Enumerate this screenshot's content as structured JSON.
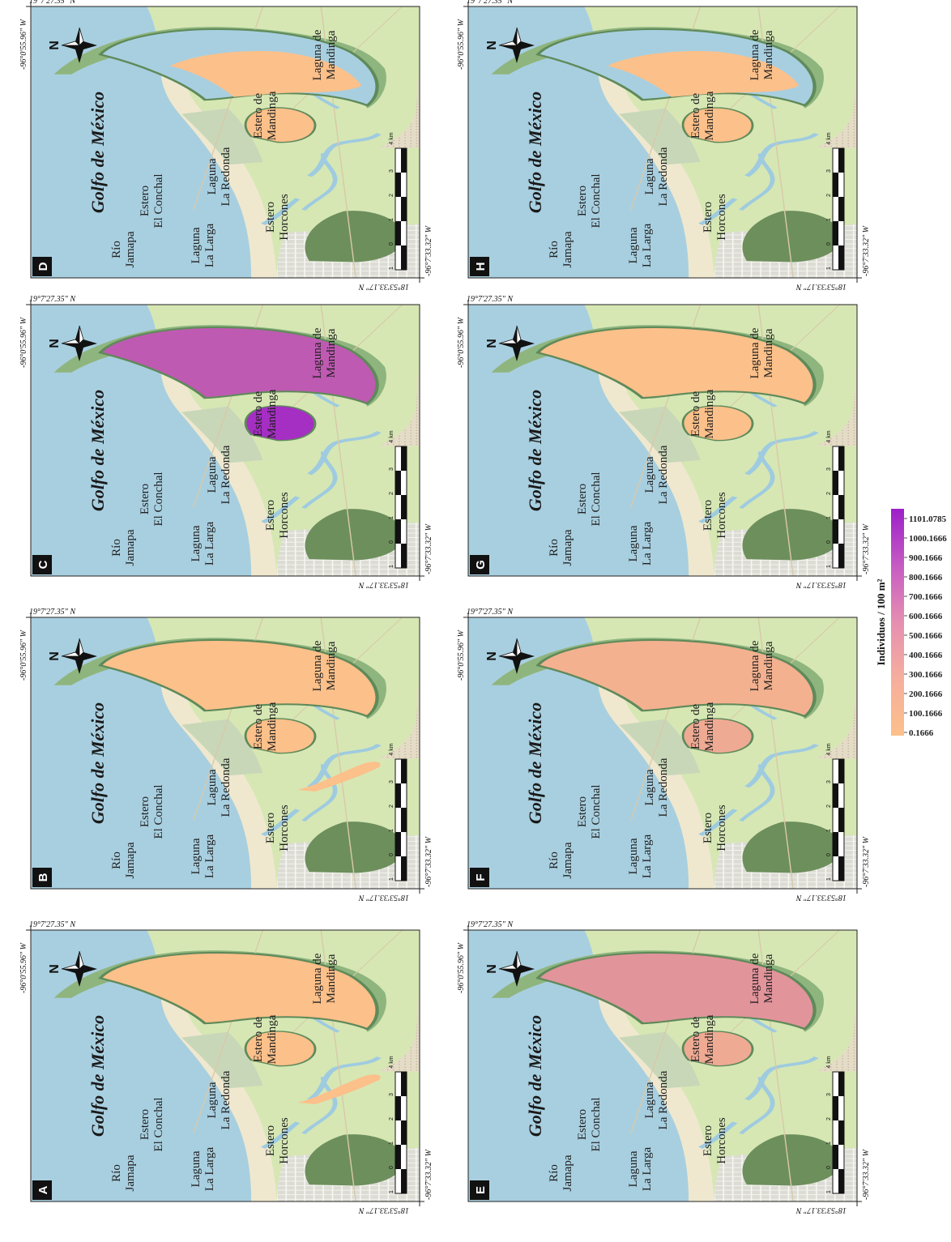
{
  "gulf_label": "Golfo de México",
  "coords": {
    "north_lat": "19°7'27.35\" N",
    "south_lat": "18°53'33.17\" N",
    "west_lon": "-96°7'33.32\" W",
    "east_lon": "-96°0'55.96\" W"
  },
  "place_names": {
    "rio": [
      "Río",
      "Jamapa"
    ],
    "estero_conchal": [
      "Estero",
      "El Conchal"
    ],
    "laguna_larga": [
      "Laguna",
      "La Larga"
    ],
    "laguna_redonda": [
      "Laguna",
      "La Redonda"
    ],
    "estero_horcones": [
      "Estero",
      "Horcones"
    ],
    "estero_mandinga": [
      "Estero de",
      "Mandinga"
    ],
    "laguna_mandinga": [
      "Laguna de",
      "Mandinga"
    ]
  },
  "north_symbol": "N",
  "scale_bar": {
    "unit": "4 km",
    "ticks": [
      "1",
      "0",
      "1",
      "2",
      "3"
    ]
  },
  "panels": [
    {
      "letter": "A",
      "redonda": 0,
      "mandinga": 0,
      "larga": true,
      "mandinga_extent": "full"
    },
    {
      "letter": "B",
      "redonda": 0,
      "mandinga": 0,
      "larga": true,
      "mandinga_extent": "full"
    },
    {
      "letter": "C",
      "redonda": 1000,
      "mandinga": 700,
      "larga": false,
      "mandinga_extent": "full"
    },
    {
      "letter": "D",
      "redonda": 0,
      "mandinga": 0,
      "larga": false,
      "mandinga_extent": "partial"
    },
    {
      "letter": "E",
      "redonda": 150,
      "mandinga": 300,
      "larga": false,
      "mandinga_extent": "full"
    },
    {
      "letter": "F",
      "redonda": 150,
      "mandinga": 100,
      "larga": false,
      "mandinga_extent": "full"
    },
    {
      "letter": "G",
      "redonda": 0,
      "mandinga": 0,
      "larga": false,
      "mandinga_extent": "full"
    },
    {
      "letter": "H",
      "redonda": 0,
      "mandinga": 0,
      "larga": false,
      "mandinga_extent": "partial"
    }
  ],
  "legend": {
    "title": "Individuos / 100 m²",
    "values": [
      "1101.0785",
      "1000.1666",
      "900.1666",
      "800.1666",
      "700.1666",
      "600.1666",
      "500.1666",
      "400.1666",
      "300.1666",
      "200.1666",
      "100.1666",
      "0.1666"
    ],
    "color_low": "#fcc08a",
    "color_high": "#9c1fc9"
  },
  "colors": {
    "sea": "#a8cfe0",
    "land": "#d6e7b4",
    "beach": "#efe8cf",
    "wetland": "#8fb57e",
    "river_forest": "#6d8f5c",
    "urban": "#d2d2cc",
    "density_low": "#fcc08a"
  }
}
